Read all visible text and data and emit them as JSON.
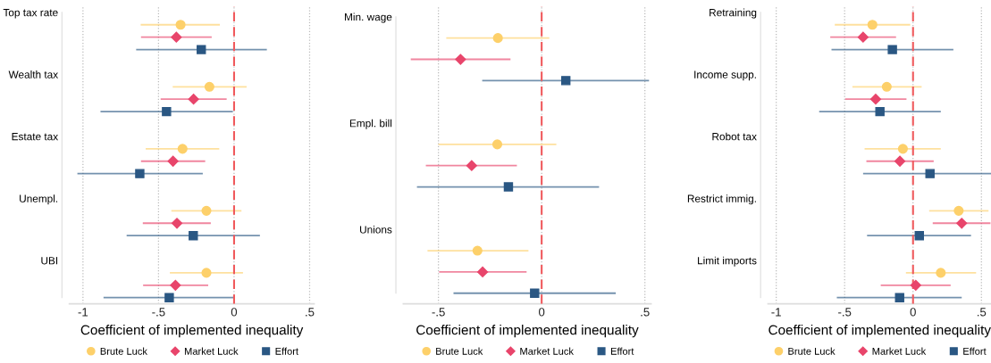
{
  "chart_data": [
    {
      "type": "scatter",
      "orientation": "horizontal",
      "categories": [
        "Top tax rate",
        "Wealth tax",
        "Estate tax",
        "Unempl.",
        "UBI"
      ],
      "xlabel": "Coefficient of implemented inequality",
      "xlim": [
        -1.09,
        0.53
      ],
      "xticks": [
        {
          "value": -1,
          "label": "-1"
        },
        {
          "value": -0.5,
          "label": "-.5"
        },
        0,
        {
          "value": 0.5,
          "label": ".5"
        }
      ],
      "grid": "x",
      "legend": "bottom",
      "ref_lines": [
        {
          "axis": "x",
          "value": 0,
          "color": "#f0595c",
          "line_style": "dashed"
        }
      ],
      "series": [
        {
          "name": "Brute Luck",
          "color": "#fdd06a",
          "marker": "circle",
          "values": [
            -0.354,
            -0.163,
            -0.341,
            -0.183,
            -0.183
          ],
          "errors": [
            [
              -0.618,
              -0.094
            ],
            [
              -0.406,
              0.083
            ],
            [
              -0.585,
              -0.098
            ],
            [
              -0.415,
              0.049
            ],
            [
              -0.425,
              0.059
            ]
          ]
        },
        {
          "name": "Market Luck",
          "color": "#e8456b",
          "marker": "diamond",
          "values": [
            -0.382,
            -0.268,
            -0.404,
            -0.378,
            -0.388
          ],
          "errors": [
            [
              -0.616,
              -0.148
            ],
            [
              -0.486,
              -0.049
            ],
            [
              -0.616,
              -0.191
            ],
            [
              -0.604,
              -0.154
            ],
            [
              -0.602,
              -0.171
            ]
          ]
        },
        {
          "name": "Effort",
          "color": "#2a5783",
          "marker": "square",
          "values": [
            -0.217,
            -0.447,
            -0.624,
            -0.27,
            -0.429
          ],
          "errors": [
            [
              -0.648,
              0.217
            ],
            [
              -0.884,
              -0.008
            ],
            [
              -1.037,
              -0.207
            ],
            [
              -0.711,
              0.171
            ],
            [
              -0.864,
              0.0
            ]
          ]
        }
      ]
    },
    {
      "type": "scatter",
      "orientation": "horizontal",
      "categories": [
        "Min. wage",
        "Empl. bill",
        "Unions"
      ],
      "xlabel": "Coefficient of implemented inequality",
      "xlim": [
        -0.67,
        0.53
      ],
      "xticks": [
        {
          "value": -0.5,
          "label": "-.5"
        },
        0,
        {
          "value": 0.5,
          "label": ".5"
        }
      ],
      "grid": "x",
      "legend": "bottom",
      "ref_lines": [
        {
          "axis": "x",
          "value": 0,
          "color": "#f0595c",
          "line_style": "dashed"
        }
      ],
      "series": [
        {
          "name": "Brute Luck",
          "color": "#fdd06a",
          "marker": "circle",
          "values": [
            -0.212,
            -0.215,
            -0.311
          ],
          "errors": [
            [
              -0.462,
              0.037
            ],
            [
              -0.5,
              0.071
            ],
            [
              -0.553,
              -0.064
            ]
          ]
        },
        {
          "name": "Market Luck",
          "color": "#e8456b",
          "marker": "diamond",
          "values": [
            -0.393,
            -0.339,
            -0.286
          ],
          "errors": [
            [
              -0.634,
              -0.151
            ],
            [
              -0.561,
              -0.12
            ],
            [
              -0.497,
              -0.073
            ]
          ]
        },
        {
          "name": "Effort",
          "color": "#2a5783",
          "marker": "square",
          "values": [
            0.117,
            -0.161,
            -0.034
          ],
          "errors": [
            [
              -0.288,
              0.52
            ],
            [
              -0.604,
              0.278
            ],
            [
              -0.427,
              0.359
            ]
          ]
        }
      ]
    },
    {
      "type": "scatter",
      "orientation": "horizontal",
      "categories": [
        "Retraining",
        "Income supp.",
        "Robot tax",
        "Restrict immig.",
        "Limit imports"
      ],
      "xlabel": "Coefficient of implemented inequality",
      "xlim": [
        -1.06,
        0.57
      ],
      "xticks": [
        {
          "value": -1,
          "label": "-1"
        },
        {
          "value": -0.5,
          "label": "-.5"
        },
        0,
        {
          "value": 0.5,
          "label": ".5"
        }
      ],
      "grid": "x",
      "legend": "bottom",
      "ref_lines": [
        {
          "axis": "x",
          "value": 0,
          "color": "#f0595c",
          "line_style": "dashed"
        }
      ],
      "series": [
        {
          "name": "Brute Luck",
          "color": "#fdd06a",
          "marker": "circle",
          "values": [
            -0.297,
            -0.192,
            -0.074,
            0.334,
            0.203
          ],
          "errors": [
            [
              -0.572,
              -0.02
            ],
            [
              -0.443,
              0.063
            ],
            [
              -0.354,
              0.203
            ],
            [
              0.118,
              0.552
            ],
            [
              -0.052,
              0.461
            ]
          ]
        },
        {
          "name": "Market Luck",
          "color": "#e8456b",
          "marker": "diamond",
          "values": [
            -0.365,
            -0.273,
            -0.096,
            0.356,
            0.02
          ],
          "errors": [
            [
              -0.605,
              -0.124
            ],
            [
              -0.496,
              -0.048
            ],
            [
              -0.341,
              0.151
            ],
            [
              0.144,
              0.566
            ],
            [
              -0.236,
              0.275
            ]
          ]
        },
        {
          "name": "Effort",
          "color": "#2a5783",
          "marker": "square",
          "values": [
            -0.151,
            -0.242,
            0.124,
            0.046,
            -0.098
          ],
          "errors": [
            [
              -0.596,
              0.295
            ],
            [
              -0.686,
              0.203
            ],
            [
              -0.365,
              0.57
            ],
            [
              -0.336,
              0.424
            ],
            [
              -0.557,
              0.356
            ]
          ]
        }
      ]
    }
  ]
}
